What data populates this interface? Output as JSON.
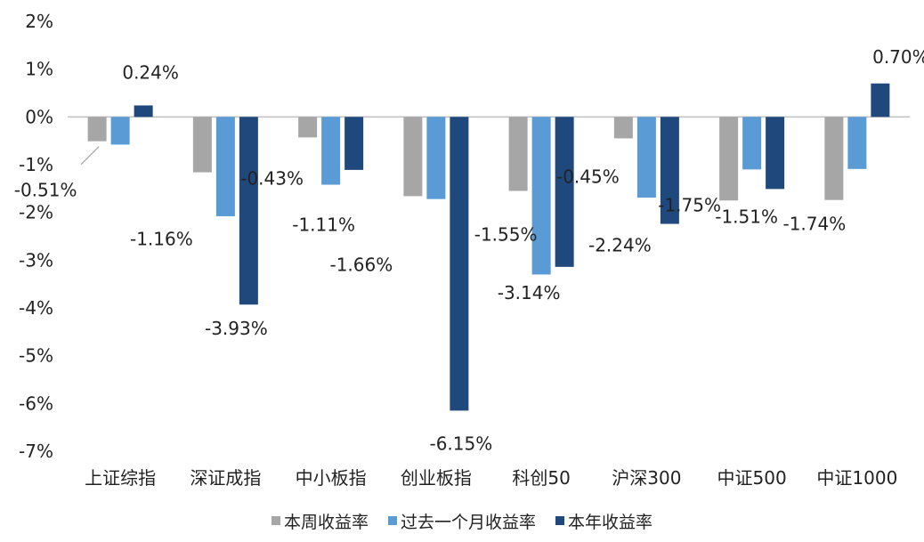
{
  "chart_data": {
    "type": "bar",
    "title": "",
    "xlabel": "",
    "ylabel": "",
    "ylim": [
      -7,
      2
    ],
    "yticks": [
      2,
      1,
      0,
      -1,
      -2,
      -3,
      -4,
      -5,
      -6,
      -7
    ],
    "ytick_labels": [
      "2%",
      "1%",
      "0%",
      "-1%",
      "-2%",
      "-3%",
      "-4%",
      "-5%",
      "-6%",
      "-7%"
    ],
    "categories": [
      "上证综指",
      "深证成指",
      "中小板指",
      "创业板指",
      "科创50",
      "沪深300",
      "中证500",
      "中证1000"
    ],
    "series": [
      {
        "name": "本周收益率",
        "color": "#a6a6a6",
        "values": [
          -0.51,
          -1.16,
          -0.43,
          -1.66,
          -1.55,
          -0.45,
          -1.75,
          -1.74
        ]
      },
      {
        "name": "过去一个月收益率",
        "color": "#5b9bd5",
        "values": [
          -0.58,
          -2.08,
          -1.42,
          -1.72,
          -3.3,
          -1.69,
          -1.1,
          -1.09
        ]
      },
      {
        "name": "本年收益率",
        "color": "#1f497d",
        "values": [
          0.24,
          -3.93,
          -1.11,
          -6.15,
          -3.14,
          -2.24,
          -1.51,
          0.7
        ]
      }
    ],
    "data_labels": [
      "-0.51%",
      "0.24%",
      "-1.16%",
      "-3.93%",
      "-0.43%",
      "-1.11%",
      "-1.66%",
      "-6.15%",
      "-1.55%",
      "-3.14%",
      "-0.45%",
      "-2.24%",
      "-1.75%",
      "-1.51%",
      "-1.74%",
      "0.70%"
    ],
    "grid": false,
    "legend_position": "bottom"
  }
}
